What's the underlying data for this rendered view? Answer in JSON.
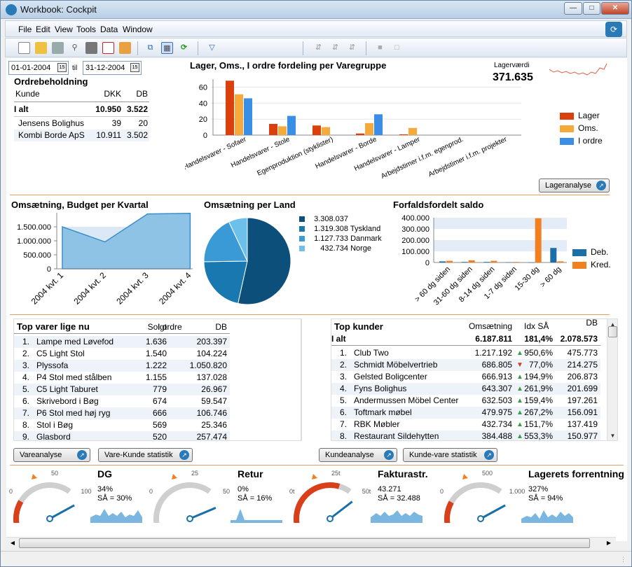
{
  "window": {
    "title": "Workbook: Cockpit",
    "minimize": "0",
    "maximize": "1",
    "close": "r"
  },
  "menu": {
    "file": "File",
    "edit": "Edit",
    "view": "View",
    "tools": "Tools",
    "data": "Data",
    "window": "Window"
  },
  "dates": {
    "from": "01-01-2004",
    "to_label": "til",
    "to": "31-12-2004"
  },
  "ordrebeholdning": {
    "title": "Ordrebeholdning",
    "headers": [
      "Kunde",
      "DKK",
      "DB"
    ],
    "total": {
      "label": "I alt",
      "dkk": "10.950",
      "db": "3.522"
    },
    "rows": [
      {
        "label": "Jensens Bolighus",
        "dkk": "39",
        "db": "20"
      },
      {
        "label": "Kombi Borde ApS",
        "dkk": "10.911",
        "db": "3.502"
      }
    ]
  },
  "lager_chart": {
    "title": "Lager, Oms., I ordre fordeling per Varegruppe",
    "button": "Lageranalyse",
    "lagervaerdi_label": "Lagerværdi",
    "lagervaerdi_value": "371.635",
    "legend": [
      "Lager",
      "Oms.",
      "I ordre"
    ],
    "colors": {
      "lager": "#d9400e",
      "oms": "#f7aa3c",
      "iordre": "#3a8ee6"
    }
  },
  "oms_budget": {
    "title": "Omsætning, Budget per Kvartal"
  },
  "oms_land": {
    "title": "Omsætning per Land",
    "legend": [
      {
        "value": "3.308.037",
        "label": ""
      },
      {
        "value": "1.319.308",
        "label": "Tyskland"
      },
      {
        "value": "1.127.733",
        "label": "Danmark"
      },
      {
        "value": "432.734",
        "label": "Norge"
      }
    ]
  },
  "forfald": {
    "title": "Forfaldsfordelt saldo",
    "legend": [
      "Deb.",
      "Kred."
    ]
  },
  "chart_data": [
    {
      "type": "bar",
      "title": "Lager, Oms., I ordre fordeling per Varegruppe",
      "categories": [
        "Handelsvarer - Sofaer",
        "Handelsvarer - Stole",
        "Egenproduktion (styklister)",
        "Handelsvarer - Borde",
        "Handelsvarer - Lamper",
        "Arbejdstimer i.f.m. egenprod.",
        "Arbejdstimer i.f.m. projekter"
      ],
      "series": [
        {
          "name": "Lager",
          "values": [
            68,
            14,
            12,
            2,
            1,
            0,
            0
          ]
        },
        {
          "name": "Oms.",
          "values": [
            51,
            11,
            10,
            15,
            9,
            0,
            0
          ]
        },
        {
          "name": "I ordre",
          "values": [
            46,
            24,
            0,
            26,
            0,
            0,
            0
          ]
        }
      ],
      "yticks": [
        "0",
        "20",
        "40",
        "60"
      ],
      "ylim": [
        0,
        70
      ],
      "legend_position": "right"
    },
    {
      "type": "area",
      "title": "Omsætning, Budget per Kvartal",
      "categories": [
        "2004 kvt. 1",
        "2004 kvt. 2",
        "2004 kvt. 3",
        "2004 kvt. 4"
      ],
      "series": [
        {
          "name": "",
          "values": [
            1500000,
            960000,
            1960000,
            1980000
          ]
        },
        {
          "name": "",
          "values": [
            1500000,
            1500000,
            1500000,
            1500000
          ]
        }
      ],
      "yticks": [
        "0",
        "500.000",
        "1.000.000",
        "1.500.000"
      ],
      "ylim": [
        0,
        2000000
      ]
    },
    {
      "type": "pie",
      "title": "Omsætning per Land",
      "labels": [
        "",
        "Tyskland",
        "Danmark",
        "Norge"
      ],
      "values": [
        3308037,
        1319308,
        1127733,
        432734
      ],
      "colors": [
        "#0c4f7a",
        "#1a78b0",
        "#3a9ad6",
        "#6cc0ea"
      ]
    },
    {
      "type": "bar",
      "title": "Forfaldsfordelt saldo",
      "categories": [
        "> 60 dg siden",
        "31-60 dg siden",
        "8-14 dg siden",
        "1-7 dg siden",
        "15-30 dg",
        "> 60 dg"
      ],
      "series": [
        {
          "name": "Deb.",
          "values": [
            10000,
            5000,
            5000,
            3000,
            0,
            130000
          ]
        },
        {
          "name": "Kred.",
          "values": [
            15000,
            20000,
            15000,
            5000,
            395000,
            10000
          ]
        }
      ],
      "yticks": [
        "0",
        "100.000",
        "200.000",
        "300.000",
        "400.000"
      ],
      "ylim": [
        0,
        400000
      ]
    }
  ],
  "top_varer": {
    "title": "Top varer lige nu",
    "headers": [
      "Solgt",
      "I ordre",
      "DB"
    ],
    "button1": "Vareanalyse",
    "button2": "Vare-Kunde statistik",
    "rows": [
      {
        "n": "1.",
        "name": "Lampe med Løvefod",
        "solgt": "1.636",
        "iordre": "",
        "db": "203.397"
      },
      {
        "n": "2.",
        "name": "C5 Light Stol",
        "solgt": "1.540",
        "iordre": "",
        "db": "104.224"
      },
      {
        "n": "3.",
        "name": "Plyssofa",
        "solgt": "1.222",
        "iordre": "",
        "db": "1.050.820"
      },
      {
        "n": "4.",
        "name": "P4 Stol med stålben",
        "solgt": "1.155",
        "iordre": "",
        "db": "137.028"
      },
      {
        "n": "5.",
        "name": "C5 Light Taburet",
        "solgt": "779",
        "iordre": "",
        "db": "26.967"
      },
      {
        "n": "6.",
        "name": "Skrivebord i Bøg",
        "solgt": "674",
        "iordre": "",
        "db": "59.547"
      },
      {
        "n": "7.",
        "name": "P6 Stol med høj ryg",
        "solgt": "666",
        "iordre": "",
        "db": "106.746"
      },
      {
        "n": "8.",
        "name": "Stol i Bøg",
        "solgt": "569",
        "iordre": "",
        "db": "25.346"
      },
      {
        "n": "9.",
        "name": "Glasbord",
        "solgt": "520",
        "iordre": "",
        "db": "257.474"
      }
    ]
  },
  "top_kunder": {
    "title": "Top kunder",
    "headers": [
      "Omsætning",
      "Idx SÅ",
      "DB"
    ],
    "button1": "Kundeanalyse",
    "button2": "Kunde-vare statistik",
    "total": {
      "label": "I alt",
      "oms": "6.187.811",
      "idx": "181,4%",
      "db": "2.078.573"
    },
    "rows": [
      {
        "n": "1.",
        "name": "Club Two",
        "oms": "1.217.192",
        "idx": "950,6%",
        "up": true,
        "db": "475.773"
      },
      {
        "n": "2.",
        "name": "Schmidt Möbelvertrieb",
        "oms": "686.805",
        "idx": "77,0%",
        "up": false,
        "db": "214.275"
      },
      {
        "n": "3.",
        "name": "Gelsted Boligcenter",
        "oms": "666.913",
        "idx": "194,9%",
        "up": true,
        "db": "206.873"
      },
      {
        "n": "4.",
        "name": "Fyns Bolighus",
        "oms": "643.307",
        "idx": "261,9%",
        "up": true,
        "db": "201.699"
      },
      {
        "n": "5.",
        "name": "Andermussen Möbel Center",
        "oms": "632.503",
        "idx": "159,4%",
        "up": true,
        "db": "197.261"
      },
      {
        "n": "6.",
        "name": "Toftmark møbel",
        "oms": "479.975",
        "idx": "267,2%",
        "up": true,
        "db": "156.091"
      },
      {
        "n": "7.",
        "name": "RBK Møbler",
        "oms": "432.734",
        "idx": "151,7%",
        "up": true,
        "db": "137.419"
      },
      {
        "n": "8.",
        "name": "Restaurant Sildehytten",
        "oms": "384.488",
        "idx": "553,3%",
        "up": true,
        "db": "150.977"
      }
    ]
  },
  "gauges": [
    {
      "label": "DG",
      "min": "0",
      "mid": "50",
      "max": "100",
      "value": "34%",
      "sa": "SÅ = 30%",
      "level": 0.34
    },
    {
      "label": "Retur",
      "min": "0",
      "mid": "25",
      "max": "50",
      "value": "0%",
      "sa": "SÅ = 16%",
      "level": 0.0
    },
    {
      "label": "Fakturastr.",
      "min": "0t",
      "mid": "25t",
      "max": "50t",
      "value": "43.271",
      "sa": "SÅ = 32.488",
      "level": 0.86
    },
    {
      "label": "Lagerets forrentning",
      "min": "0",
      "mid": "500",
      "max": "1.000",
      "value": "327%",
      "sa": "SÅ = 94%",
      "level": 0.33
    }
  ]
}
